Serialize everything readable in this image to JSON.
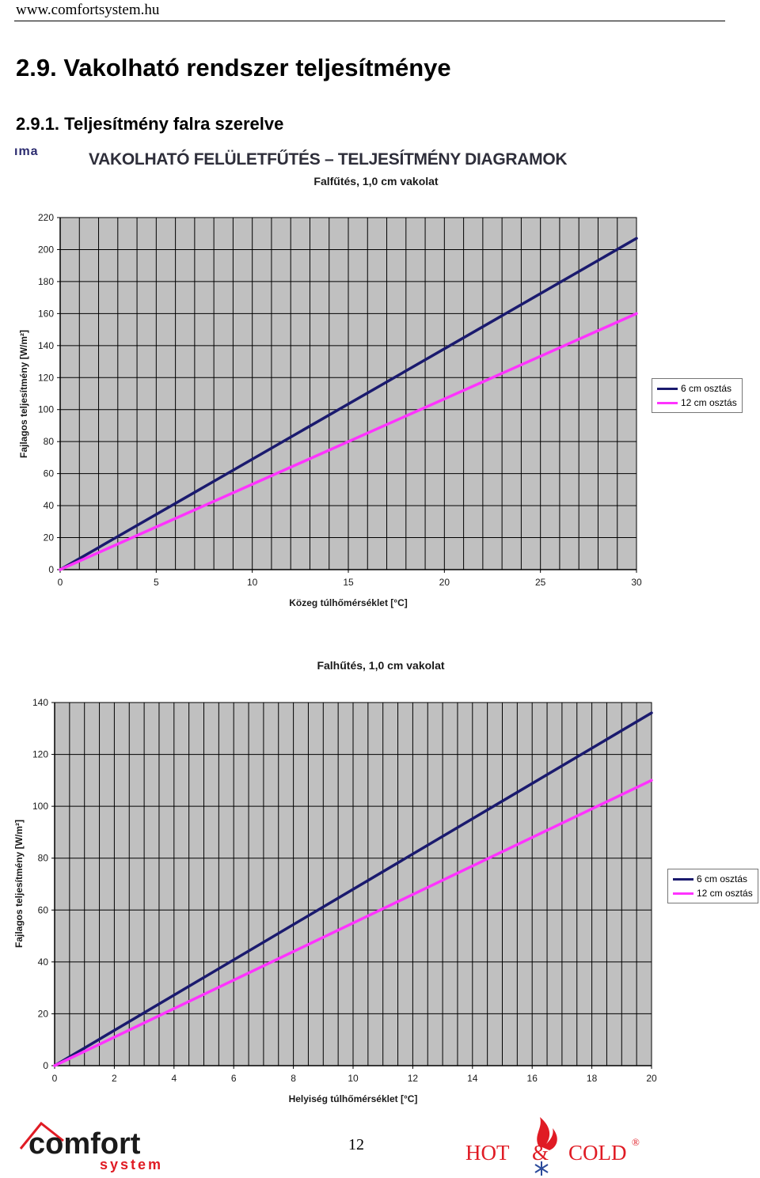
{
  "header": {
    "site_url": "www.comfortsystem.hu",
    "section_title": "2.9. Vakolható rendszer teljesítménye",
    "subsection_title": "2.9.1. Teljesítmény falra szerelve"
  },
  "diagram": {
    "logo_fragment": "ıma",
    "title": "VAKOLHATÓ FELÜLETFŰTÉS – TELJESÍTMÉNY DIAGRAMOK"
  },
  "colors": {
    "plot_bg": "#c0c0c0",
    "grid": "#000000",
    "series_6cm": "#1a1a6e",
    "series_12cm": "#ff33ff",
    "brand_red": "#e01b24"
  },
  "chart_data": [
    {
      "type": "line",
      "title": "Falfűtés, 1,0 cm vakolat",
      "xlabel": "Közeg túlhőmérséklet [°C]",
      "ylabel": "Fajlagos teljesítmény [W/m²]",
      "xlim": [
        0,
        30
      ],
      "ylim": [
        0,
        220
      ],
      "x_ticks": [
        "0",
        "5",
        "10",
        "15",
        "20",
        "25",
        "30"
      ],
      "y_ticks": [
        "0",
        "20",
        "40",
        "60",
        "80",
        "100",
        "120",
        "140",
        "160",
        "180",
        "200",
        "220"
      ],
      "minor_x_step": 1,
      "legend": "right",
      "series": [
        {
          "name": "6 cm osztás",
          "color": "#1a1a6e",
          "x": [
            0,
            30
          ],
          "y": [
            0,
            207
          ]
        },
        {
          "name": "12 cm osztás",
          "color": "#ff33ff",
          "x": [
            0,
            30
          ],
          "y": [
            0,
            160
          ]
        }
      ]
    },
    {
      "type": "line",
      "title": "Falhűtés, 1,0 cm vakolat",
      "xlabel": "Helyiség túlhőmérséklet [°C]",
      "ylabel": "Fajlagos teljesítmény [W/m²]",
      "xlim": [
        0,
        20
      ],
      "ylim": [
        0,
        140
      ],
      "x_ticks": [
        "0",
        "2",
        "4",
        "6",
        "8",
        "10",
        "12",
        "14",
        "16",
        "18",
        "20"
      ],
      "y_ticks": [
        "0",
        "20",
        "40",
        "60",
        "80",
        "100",
        "120",
        "140"
      ],
      "minor_x_step": 0.5,
      "legend": "right",
      "series": [
        {
          "name": "6 cm osztás",
          "color": "#1a1a6e",
          "x": [
            0,
            20
          ],
          "y": [
            0,
            136
          ]
        },
        {
          "name": "12 cm osztás",
          "color": "#ff33ff",
          "x": [
            0,
            20
          ],
          "y": [
            0,
            110
          ]
        }
      ]
    }
  ],
  "footer": {
    "logo_left_word": "comfort",
    "logo_left_sub": "system",
    "page_number": "12",
    "logo_right_hot": "HOT",
    "logo_right_amp": "&",
    "logo_right_cold": "COLD",
    "logo_right_reg": "®"
  }
}
